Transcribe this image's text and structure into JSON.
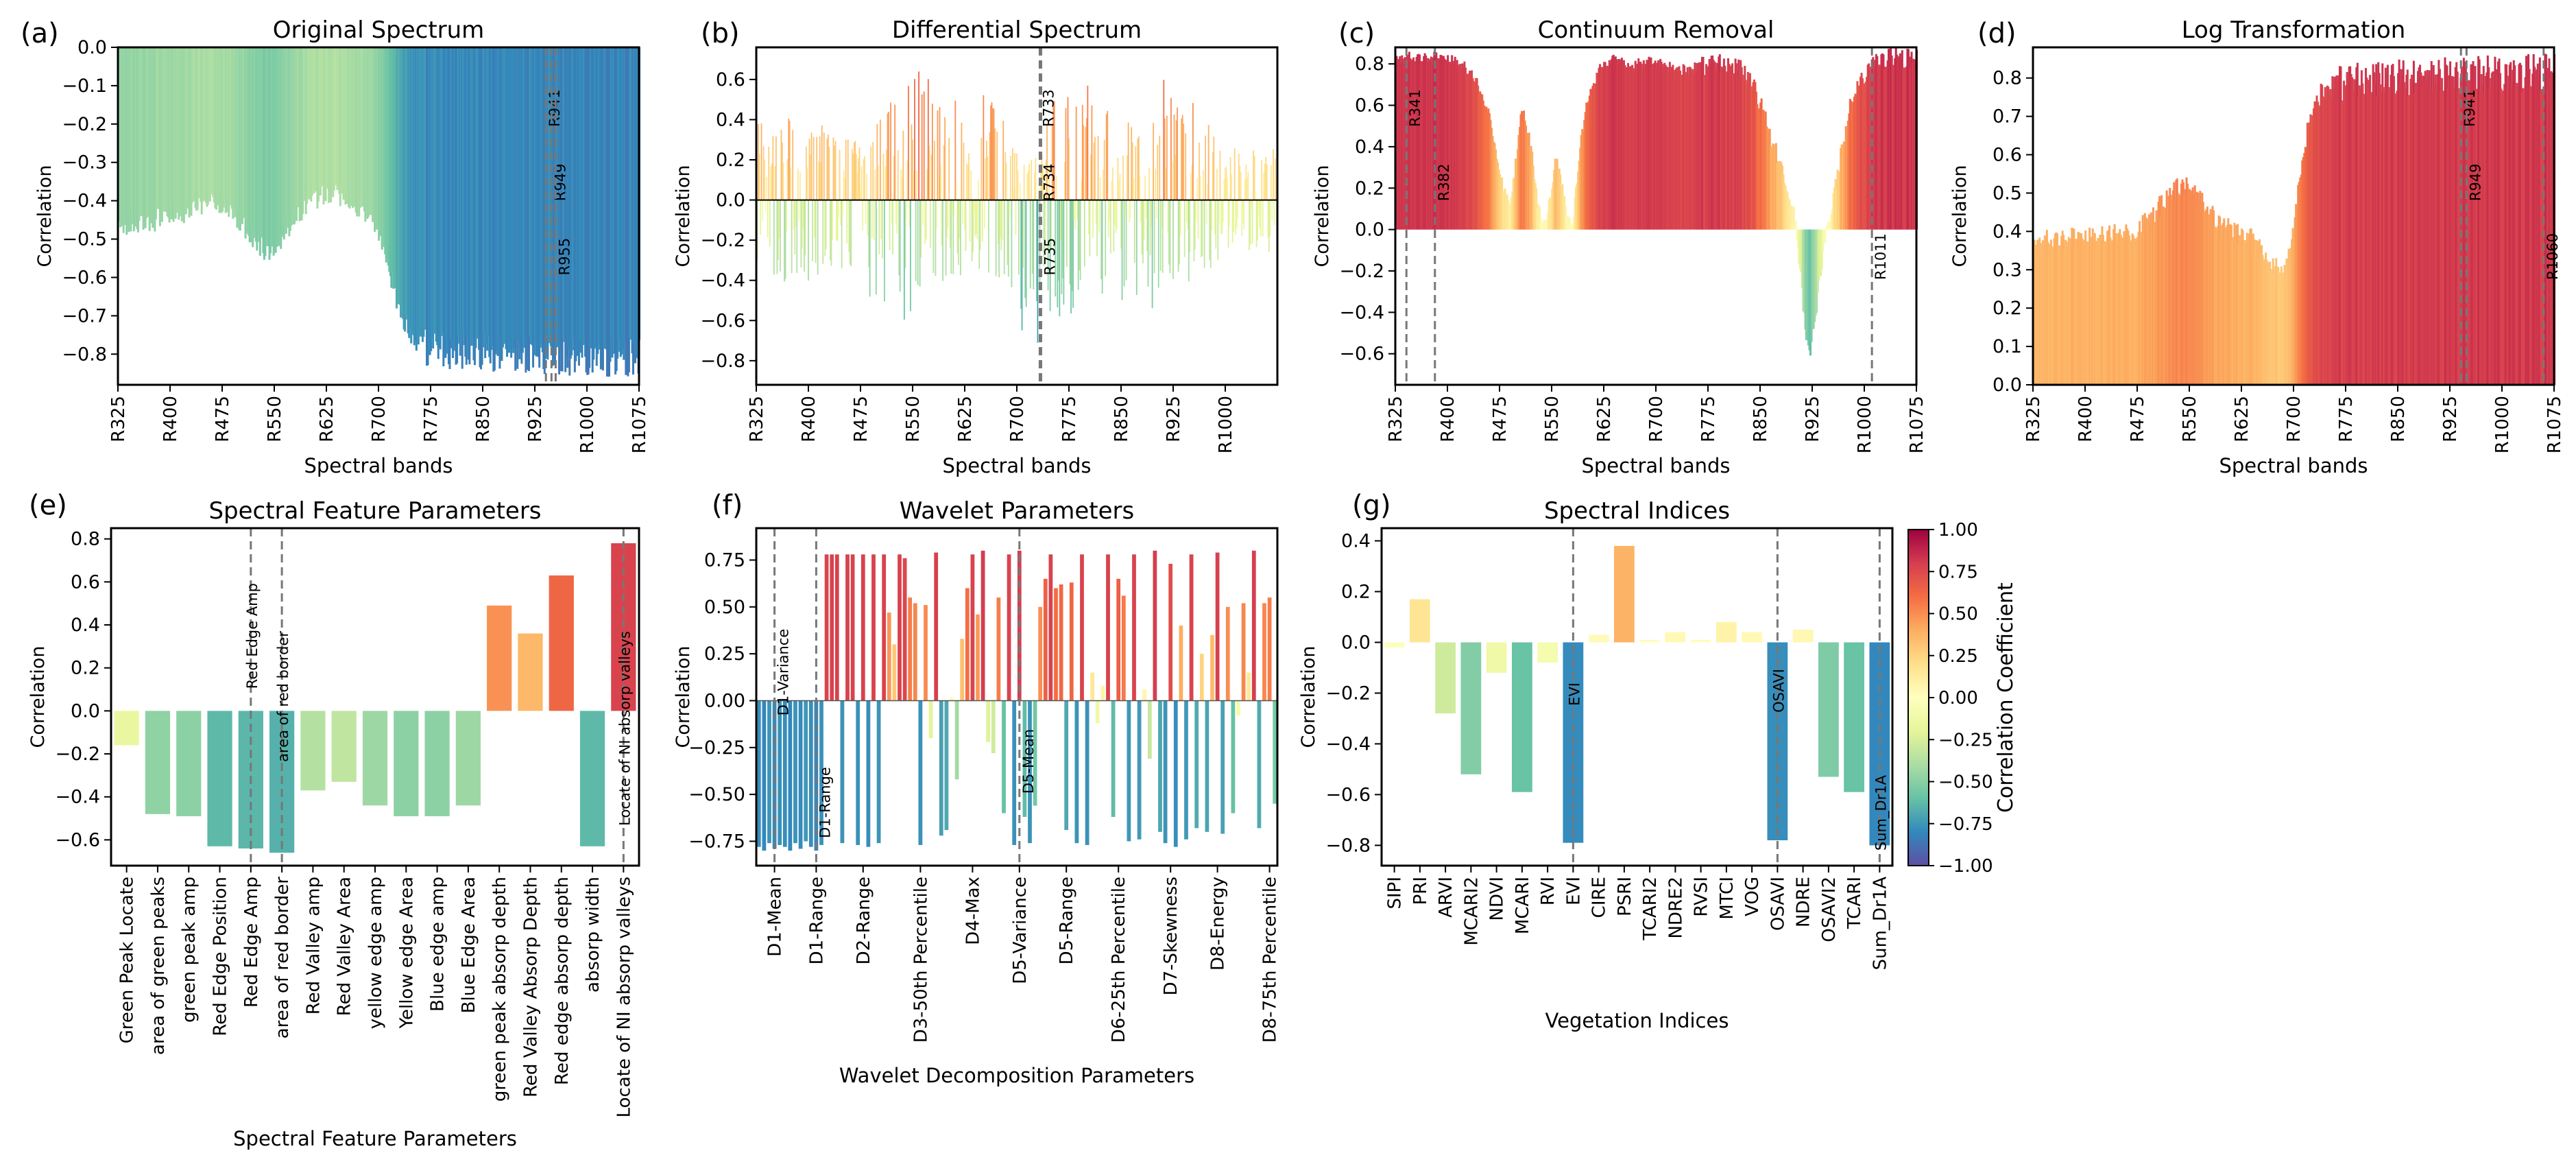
{
  "colorbar": {
    "label": "Correlation Coefficient",
    "ticks": [
      "1.00",
      "0.75",
      "0.50",
      "0.25",
      "0.00",
      "−0.25",
      "−0.50",
      "−0.75",
      "−1.00"
    ],
    "tick_values": [
      1.0,
      0.75,
      0.5,
      0.25,
      0.0,
      -0.25,
      -0.5,
      -0.75,
      -1.0
    ],
    "colormap": "Spectral_r",
    "stops": [
      "#9e0142",
      "#d53e4f",
      "#f46d43",
      "#fdae61",
      "#fee08b",
      "#ffffbf",
      "#e6f598",
      "#abdda4",
      "#66c2a5",
      "#3288bd",
      "#5e4fa2"
    ]
  },
  "chart_data": [
    {
      "panel": "(a)",
      "type": "bar",
      "title": "Original Spectrum",
      "xlabel": "Spectral bands",
      "ylabel": "Correlation",
      "xlim": [
        325,
        1075
      ],
      "ylim": [
        -0.88,
        0.0
      ],
      "invert_y": true,
      "x_ticks": [
        "R325",
        "R400",
        "R475",
        "R550",
        "R625",
        "R700",
        "R775",
        "R850",
        "R925",
        "R1000",
        "R1075"
      ],
      "x_tick_values": [
        325,
        400,
        475,
        550,
        625,
        700,
        775,
        850,
        925,
        1000,
        1075
      ],
      "y_ticks": [
        "0.0",
        "−0.1",
        "−0.2",
        "−0.3",
        "−0.4",
        "−0.5",
        "−0.6",
        "−0.7",
        "−0.8"
      ],
      "y_tick_values": [
        0.0,
        -0.1,
        -0.2,
        -0.3,
        -0.4,
        -0.5,
        -0.6,
        -0.7,
        -0.8
      ],
      "curve": {
        "x": [
          325,
          340,
          360,
          380,
          400,
          420,
          440,
          460,
          480,
          500,
          520,
          530,
          540,
          550,
          560,
          570,
          580,
          600,
          620,
          640,
          660,
          680,
          690,
          700,
          710,
          720,
          730,
          740,
          750,
          760,
          770,
          800,
          850,
          900,
          950,
          1000,
          1075
        ],
        "y": [
          -0.46,
          -0.46,
          -0.455,
          -0.45,
          -0.44,
          -0.43,
          -0.41,
          -0.395,
          -0.41,
          -0.45,
          -0.5,
          -0.52,
          -0.53,
          -0.525,
          -0.5,
          -0.47,
          -0.44,
          -0.4,
          -0.385,
          -0.385,
          -0.4,
          -0.43,
          -0.45,
          -0.48,
          -0.55,
          -0.62,
          -0.68,
          -0.73,
          -0.76,
          -0.775,
          -0.785,
          -0.79,
          -0.795,
          -0.8,
          -0.805,
          -0.81,
          -0.81
        ]
      },
      "marked_bands": [
        {
          "x": 941,
          "label": "R941"
        },
        {
          "x": 949,
          "label": "R949"
        },
        {
          "x": 955,
          "label": "R955"
        }
      ]
    },
    {
      "panel": "(b)",
      "type": "bar",
      "title": "Differential Spectrum",
      "xlabel": "Spectral bands",
      "ylabel": "Correlation",
      "xlim": [
        325,
        1075
      ],
      "ylim": [
        -0.92,
        0.76
      ],
      "x_ticks": [
        "R325",
        "R400",
        "R475",
        "R550",
        "R625",
        "R700",
        "R775",
        "R850",
        "R925",
        "R1000"
      ],
      "x_tick_values": [
        325,
        400,
        475,
        550,
        625,
        700,
        775,
        850,
        925,
        1000
      ],
      "y_ticks": [
        "0.6",
        "0.4",
        "0.2",
        "0.0",
        "−0.2",
        "−0.4",
        "−0.6",
        "−0.8"
      ],
      "y_tick_values": [
        0.6,
        0.4,
        0.2,
        0.0,
        -0.2,
        -0.4,
        -0.6,
        -0.8
      ],
      "envelope": {
        "x": [
          325,
          350,
          400,
          450,
          500,
          540,
          560,
          600,
          640,
          680,
          700,
          720,
          734,
          750,
          800,
          850,
          900,
          950,
          1000,
          1075
        ],
        "pos": [
          0.4,
          0.35,
          0.5,
          0.3,
          0.45,
          0.55,
          0.65,
          0.5,
          0.6,
          0.45,
          0.3,
          0.25,
          0.2,
          0.55,
          0.6,
          0.4,
          0.65,
          0.5,
          0.3,
          0.25
        ],
        "neg": [
          -0.3,
          -0.4,
          -0.45,
          -0.35,
          -0.55,
          -0.6,
          -0.5,
          -0.4,
          -0.35,
          -0.45,
          -0.6,
          -0.75,
          -0.78,
          -0.6,
          -0.55,
          -0.5,
          -0.55,
          -0.4,
          -0.3,
          -0.25
        ]
      },
      "marked_bands": [
        {
          "x": 733,
          "label": "R733"
        },
        {
          "x": 734,
          "label": "R734"
        },
        {
          "x": 735,
          "label": "R735"
        }
      ]
    },
    {
      "panel": "(c)",
      "type": "bar",
      "title": "Continuum Removal",
      "xlabel": "Spectral bands",
      "ylabel": "Correlation",
      "xlim": [
        325,
        1075
      ],
      "ylim": [
        -0.75,
        0.88
      ],
      "x_ticks": [
        "R325",
        "R400",
        "R475",
        "R550",
        "R625",
        "R700",
        "R775",
        "R850",
        "R925",
        "R1000",
        "R1075"
      ],
      "x_tick_values": [
        325,
        400,
        475,
        550,
        625,
        700,
        775,
        850,
        925,
        1000,
        1075
      ],
      "y_ticks": [
        "0.8",
        "0.6",
        "0.4",
        "0.2",
        "0.0",
        "−0.2",
        "−0.4",
        "−0.6"
      ],
      "y_tick_values": [
        0.8,
        0.6,
        0.4,
        0.2,
        0.0,
        -0.2,
        -0.4,
        -0.6
      ],
      "curve": {
        "x": [
          325,
          380,
          400,
          420,
          440,
          460,
          470,
          480,
          490,
          500,
          505,
          510,
          520,
          530,
          540,
          550,
          555,
          560,
          570,
          580,
          590,
          600,
          620,
          640,
          660,
          680,
          700,
          720,
          740,
          760,
          780,
          800,
          820,
          840,
          860,
          880,
          890,
          900,
          910,
          920,
          930,
          940,
          950,
          960,
          980,
          1000,
          1011,
          1020,
          1040,
          1075
        ],
        "y": [
          0.83,
          0.83,
          0.82,
          0.8,
          0.72,
          0.55,
          0.38,
          0.2,
          0.1,
          0.4,
          0.54,
          0.55,
          0.4,
          0.1,
          0.02,
          0.2,
          0.35,
          0.3,
          0.1,
          0.02,
          0.4,
          0.6,
          0.78,
          0.82,
          0.8,
          0.8,
          0.81,
          0.78,
          0.77,
          0.78,
          0.8,
          0.8,
          0.78,
          0.7,
          0.5,
          0.3,
          0.15,
          0.05,
          -0.3,
          -0.62,
          -0.4,
          -0.1,
          0.05,
          0.25,
          0.6,
          0.75,
          0.8,
          0.82,
          0.83,
          0.82
        ]
      },
      "marked_bands": [
        {
          "x": 341,
          "label": "R341"
        },
        {
          "x": 382,
          "label": "R382"
        },
        {
          "x": 1011,
          "label": "R1011"
        }
      ]
    },
    {
      "panel": "(d)",
      "type": "bar",
      "title": "Log Transformation",
      "xlabel": "Spectral bands",
      "ylabel": "Correlation",
      "xlim": [
        325,
        1075
      ],
      "ylim": [
        0.0,
        0.88
      ],
      "x_ticks": [
        "R325",
        "R400",
        "R475",
        "R550",
        "R625",
        "R700",
        "R775",
        "R850",
        "R925",
        "R1000",
        "R1075"
      ],
      "x_tick_values": [
        325,
        400,
        475,
        550,
        625,
        700,
        775,
        850,
        925,
        1000,
        1075
      ],
      "y_ticks": [
        "0.8",
        "0.7",
        "0.6",
        "0.5",
        "0.4",
        "0.3",
        "0.2",
        "0.1",
        "0.0"
      ],
      "y_tick_values": [
        0.8,
        0.7,
        0.6,
        0.5,
        0.4,
        0.3,
        0.2,
        0.1,
        0.0
      ],
      "curve": {
        "x": [
          325,
          360,
          400,
          440,
          470,
          490,
          510,
          530,
          545,
          560,
          580,
          600,
          620,
          640,
          660,
          680,
          690,
          700,
          710,
          720,
          730,
          740,
          750,
          760,
          780,
          800,
          850,
          900,
          950,
          1000,
          1075
        ],
        "y": [
          0.37,
          0.38,
          0.38,
          0.39,
          0.4,
          0.43,
          0.47,
          0.51,
          0.52,
          0.5,
          0.45,
          0.41,
          0.39,
          0.38,
          0.34,
          0.29,
          0.3,
          0.42,
          0.55,
          0.66,
          0.73,
          0.76,
          0.77,
          0.78,
          0.79,
          0.795,
          0.8,
          0.805,
          0.81,
          0.81,
          0.815
        ]
      },
      "marked_bands": [
        {
          "x": 941,
          "label": "R941"
        },
        {
          "x": 949,
          "label": "R949"
        },
        {
          "x": 1060,
          "label": "R1060"
        }
      ]
    },
    {
      "panel": "(e)",
      "type": "bar",
      "title": "Spectral Feature Parameters",
      "xlabel": "Spectral Feature Parameters",
      "ylabel": "Correlation",
      "ylim": [
        -0.72,
        0.85
      ],
      "y_ticks": [
        "0.8",
        "0.6",
        "0.4",
        "0.2",
        "0.0",
        "−0.2",
        "−0.4",
        "−0.6"
      ],
      "y_tick_values": [
        0.8,
        0.6,
        0.4,
        0.2,
        0.0,
        -0.2,
        -0.4,
        -0.6
      ],
      "categories": [
        "Green Peak Locate",
        "area of green peaks",
        "green peak amp",
        "Red Edge Position",
        "Red Edge Amp",
        "area of red border",
        "Red Valley amp",
        "Red Valley Area",
        "yellow edge amp",
        "Yellow edge Area",
        "Blue edge amp",
        "Blue Edge Area",
        "green peak absorp depth",
        "Red Valley Absorp Depth",
        "Red edge absorp depth",
        "absorp width",
        "Locate of NI absorp valleys"
      ],
      "values": [
        -0.16,
        -0.48,
        -0.49,
        -0.63,
        -0.64,
        -0.66,
        -0.37,
        -0.33,
        -0.44,
        -0.49,
        -0.49,
        -0.44,
        0.49,
        0.36,
        0.63,
        -0.63,
        0.78
      ],
      "marked": [
        {
          "category": "Red Edge Amp",
          "label": "Red Edge Amp"
        },
        {
          "category": "area of red border",
          "label": "area of red border"
        },
        {
          "category": "Locate of NI absorp valleys",
          "label": "Locate of NI absorp valleys"
        }
      ]
    },
    {
      "panel": "(f)",
      "type": "bar",
      "title": "Wavelet Parameters",
      "xlabel": "Wavelet Decomposition Parameters",
      "ylabel": "Correlation",
      "ylim": [
        -0.88,
        0.92
      ],
      "y_ticks": [
        "0.75",
        "0.50",
        "0.25",
        "0.00",
        "−0.25",
        "−0.50",
        "−0.75"
      ],
      "y_tick_values": [
        0.75,
        0.5,
        0.25,
        0.0,
        -0.25,
        -0.5,
        -0.75
      ],
      "x_tick_labels": [
        "D1-Mean",
        "D1-Range",
        "D2-Range",
        "D3-50th Percentile",
        "D4-Max",
        "D5-Variance",
        "D5-Range",
        "D6-25th Percentile",
        "D7-Skewness",
        "D8-Energy",
        "D8-75th Percentile"
      ],
      "x_tick_positions": [
        3,
        11,
        20,
        31,
        41,
        50,
        59,
        69,
        79,
        88,
        98
      ],
      "bar_count": 100,
      "values": [
        -0.78,
        -0.8,
        -0.76,
        -0.79,
        -0.77,
        -0.78,
        -0.8,
        -0.76,
        -0.79,
        -0.75,
        -0.78,
        -0.8,
        -0.77,
        0.78,
        0.78,
        0.78,
        -0.76,
        0.78,
        0.78,
        -0.77,
        0.78,
        -0.78,
        0.78,
        -0.76,
        0.78,
        0.47,
        0.3,
        0.78,
        0.76,
        0.55,
        0.52,
        -0.77,
        0.51,
        -0.2,
        0.79,
        -0.72,
        -0.69,
        0.02,
        -0.42,
        0.33,
        0.6,
        0.78,
        0.46,
        0.8,
        -0.22,
        -0.28,
        0.55,
        -0.6,
        0.78,
        -0.77,
        0.8,
        -0.62,
        -0.76,
        -0.56,
        0.5,
        0.65,
        0.78,
        0.6,
        0.62,
        -0.69,
        0.63,
        -0.76,
        0.78,
        -0.77,
        0.15,
        -0.12,
        0.08,
        0.78,
        -0.62,
        0.65,
        0.56,
        -0.75,
        0.78,
        -0.74,
        0.06,
        -0.31,
        0.8,
        -0.7,
        -0.76,
        0.73,
        -0.78,
        0.4,
        -0.74,
        0.78,
        -0.68,
        0.25,
        -0.7,
        0.35,
        0.79,
        -0.71,
        0.5,
        -0.6,
        -0.08,
        0.52,
        0.15,
        0.8,
        -0.68,
        0.52,
        0.55,
        -0.55
      ],
      "marked": [
        {
          "position": 3,
          "label": "D1-Variance"
        },
        {
          "position": 11,
          "label": "D1-Range"
        },
        {
          "position": 50,
          "label": "D5-Mean"
        }
      ]
    },
    {
      "panel": "(g)",
      "type": "bar",
      "title": "Spectral Indices",
      "xlabel": "Vegetation Indices",
      "ylabel": "Correlation",
      "ylim": [
        -0.88,
        0.45
      ],
      "y_ticks": [
        "0.4",
        "0.2",
        "0.0",
        "−0.2",
        "−0.4",
        "−0.6",
        "−0.8"
      ],
      "y_tick_values": [
        0.4,
        0.2,
        0.0,
        -0.2,
        -0.4,
        -0.6,
        -0.8
      ],
      "categories": [
        "SIPI",
        "PRI",
        "ARVI",
        "MCARI2",
        "NDVI",
        "MCARI",
        "RVI",
        "EVI",
        "CIRE",
        "PSRI",
        "TCARI2",
        "NDRE2",
        "RVSI",
        "MTCI",
        "VOG",
        "OSAVI",
        "NDRE",
        "OSAVI2",
        "TCARI",
        "Sum_Dr1A"
      ],
      "values": [
        -0.02,
        0.17,
        -0.28,
        -0.52,
        -0.12,
        -0.59,
        -0.08,
        -0.79,
        0.03,
        0.38,
        0.01,
        0.04,
        0.01,
        0.08,
        0.04,
        -0.78,
        0.05,
        -0.53,
        -0.59,
        -0.8
      ],
      "marked": [
        {
          "category": "EVI",
          "label": "EVI"
        },
        {
          "category": "OSAVI",
          "label": "OSAVI"
        },
        {
          "category": "Sum_Dr1A",
          "label": "Sum_Dr1A"
        }
      ]
    }
  ]
}
